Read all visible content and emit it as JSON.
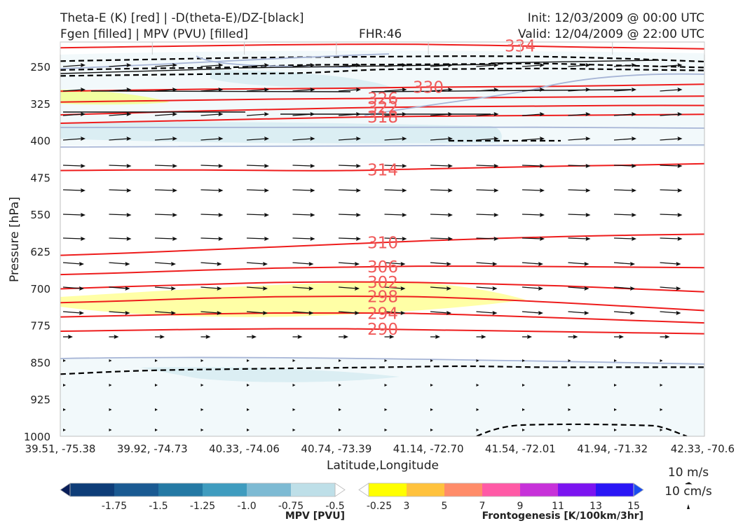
{
  "header": {
    "title_line1": "Theta-E (K) [red] | -D(theta-E)/DZ-[black]",
    "title_line2": "Fgen [filled] | MPV (PVU) [filled]",
    "fhr": "FHR:46",
    "init": "Init: 12/03/2009 @ 00:00 UTC",
    "valid": "Valid: 12/04/2009 @ 22:00 UTC"
  },
  "chart_data": {
    "type": "cross-section",
    "xlabel": "Latitude,Longitude",
    "ylabel": "Pressure [hPa]",
    "x_ticks": [
      "39.51, -75.38",
      "39.92, -74.73",
      "40.33, -74.06",
      "40.74, -73.39",
      "41.14, -72.70",
      "41.54, -72.01",
      "41.94, -71.32",
      "42.33, -70.6"
    ],
    "y_ticks": [
      250,
      325,
      400,
      475,
      550,
      625,
      700,
      775,
      850,
      925,
      1000
    ],
    "ylim": [
      1000,
      200
    ],
    "theta_e_contours": [
      {
        "label": "334",
        "p": [
          212,
          210,
          208,
          206,
          205,
          205,
          207,
          210,
          212,
          214
        ]
      },
      {
        "label": "330",
        "p": [
          300,
          298,
          296,
          295,
          294,
          292,
          291,
          290,
          288,
          286
        ]
      },
      {
        "label": "326",
        "p": [
          322,
          320,
          318,
          316,
          315,
          314,
          313,
          312,
          311,
          310
        ]
      },
      {
        "label": "322",
        "p": [
          348,
          344,
          340,
          337,
          334,
          332,
          331,
          330,
          329,
          329
        ]
      },
      {
        "label": "318",
        "p": [
          365,
          362,
          359,
          356,
          353,
          351,
          350,
          349,
          348,
          347
        ]
      },
      {
        "label": "314",
        "p": [
          461,
          460,
          460,
          461,
          461,
          458,
          455,
          452,
          450,
          447
        ]
      },
      {
        "label": "310",
        "p": [
          633,
          628,
          622,
          616,
          610,
          604,
          599,
          595,
          592,
          590
        ]
      },
      {
        "label": "306",
        "p": [
          672,
          668,
          663,
          659,
          657,
          655,
          655,
          656,
          657,
          658
        ]
      },
      {
        "label": "302",
        "p": [
          701,
          696,
          692,
          688,
          687,
          688,
          691,
          695,
          701,
          707
        ]
      },
      {
        "label": "298",
        "p": [
          729,
          725,
          720,
          717,
          716,
          717,
          722,
          729,
          737,
          745
        ]
      },
      {
        "label": "294",
        "p": [
          758,
          755,
          752,
          750,
          750,
          751,
          755,
          760,
          765,
          770
        ]
      },
      {
        "label": "290",
        "p": [
          787,
          785,
          783,
          782,
          782,
          784,
          786,
          788,
          790,
          792
        ]
      }
    ],
    "stability_contours": [
      {
        "p": [
          239,
          236,
          233,
          231,
          230,
          229,
          230,
          234,
          240
        ]
      },
      {
        "p": [
          257,
          254,
          252,
          247,
          246,
          245,
          244,
          248,
          252
        ]
      },
      {
        "p": [
          269,
          267,
          265,
          263,
          256,
          255,
          254,
          256,
          258
        ]
      },
      {
        "p": [
          874,
          867,
          864,
          862,
          860,
          858,
          860,
          860,
          860
        ]
      }
    ],
    "mpv_legend": {
      "label": "MPV [PVU]",
      "ticks": [
        "-1.75",
        "-1.5",
        "-1.25",
        "-1.0",
        "-0.75",
        "-0.5",
        "-0.25"
      ],
      "colors": [
        "#081d58",
        "#0e3d78",
        "#1a5a92",
        "#2479a4",
        "#3f9cbf",
        "#7dbad3",
        "#bedfe8",
        "#ffffff"
      ]
    },
    "fgen_legend": {
      "label": "Frontogenesis [K/100km/3hr]",
      "ticks": [
        "3",
        "5",
        "7",
        "9",
        "11",
        "13",
        "15"
      ],
      "colors": [
        "#ffffff",
        "#ffff00",
        "#ffc23d",
        "#ff8c69",
        "#ff5aa6",
        "#c732d9",
        "#7b14f0",
        "#2a16f5",
        "#1a4cf0"
      ]
    },
    "wind_key": {
      "horizontal": "10 m/s",
      "vertical": "10 cm/s"
    }
  }
}
